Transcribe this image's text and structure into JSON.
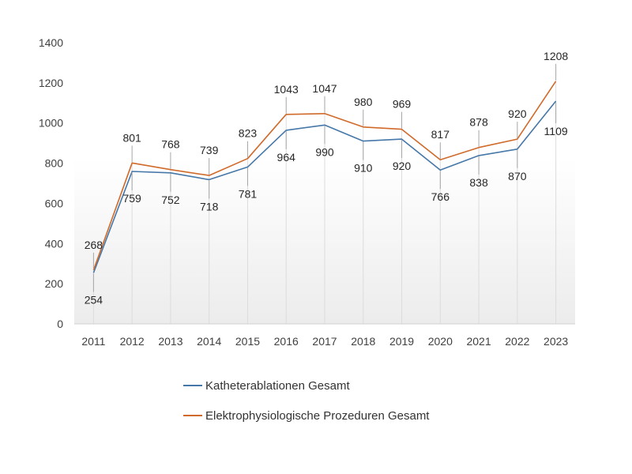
{
  "chart_data": {
    "type": "line",
    "title": "",
    "xlabel": "",
    "ylabel": "",
    "categories": [
      "2011",
      "2012",
      "2013",
      "2014",
      "2015",
      "2016",
      "2017",
      "2018",
      "2019",
      "2020",
      "2021",
      "2022",
      "2023"
    ],
    "ylim": [
      0,
      1400
    ],
    "yticks": [
      0,
      200,
      400,
      600,
      800,
      1000,
      1200,
      1400
    ],
    "grid": false,
    "legend_position": "bottom",
    "series": [
      {
        "name": "Katheterablationen Gesamt",
        "color": "#4577A8",
        "values": [
          254,
          759,
          752,
          718,
          781,
          964,
          990,
          910,
          920,
          766,
          838,
          870,
          1109
        ]
      },
      {
        "name": "Elektrophysiologische Prozeduren Gesamt",
        "color": "#D06A2A",
        "values": [
          268,
          801,
          768,
          739,
          823,
          1043,
          1047,
          980,
          969,
          817,
          878,
          920,
          1208
        ]
      }
    ]
  }
}
